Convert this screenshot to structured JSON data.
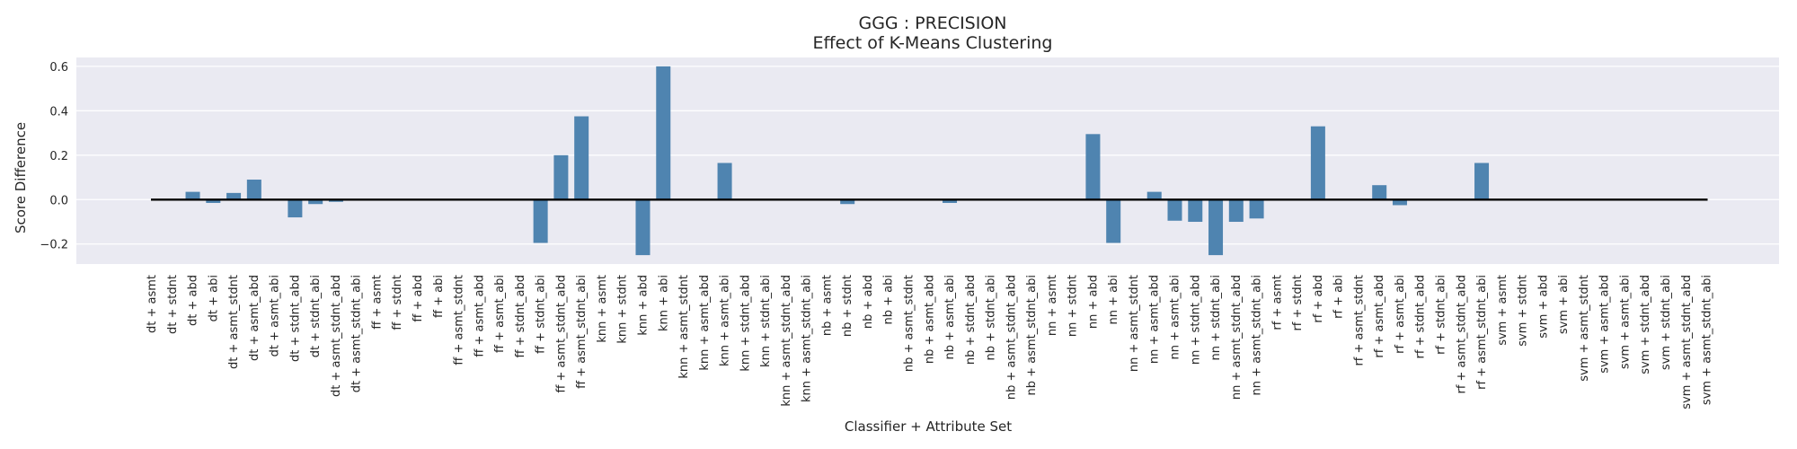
{
  "chart_data": {
    "type": "bar",
    "title": "GGG : PRECISION",
    "subtitle": "Effect of K-Means Clustering",
    "xlabel": "Classifier + Attribute Set",
    "ylabel": "Score Difference",
    "ylim": [
      -0.29,
      0.64
    ],
    "yticks": [
      -0.2,
      0.0,
      0.2,
      0.4,
      0.6
    ],
    "ytick_labels": [
      "−0.2",
      "0.0",
      "0.2",
      "0.4",
      "0.6"
    ],
    "grid": true,
    "bar_color": "#4f84b0",
    "background_color": "#eaeaf2",
    "zero_line_color": "#000000",
    "categories": [
      "dt + asmt",
      "dt + stdnt",
      "dt + abd",
      "dt + abi",
      "dt + asmt_stdnt",
      "dt + asmt_abd",
      "dt + asmt_abi",
      "dt + stdnt_abd",
      "dt + stdnt_abi",
      "dt + asmt_stdnt_abd",
      "dt + asmt_stdnt_abi",
      "ff + asmt",
      "ff + stdnt",
      "ff + abd",
      "ff + abi",
      "ff + asmt_stdnt",
      "ff + asmt_abd",
      "ff + asmt_abi",
      "ff + stdnt_abd",
      "ff + stdnt_abi",
      "ff + asmt_stdnt_abd",
      "ff + asmt_stdnt_abi",
      "knn + asmt",
      "knn + stdnt",
      "knn + abd",
      "knn + abi",
      "knn + asmt_stdnt",
      "knn + asmt_abd",
      "knn + asmt_abi",
      "knn + stdnt_abd",
      "knn + stdnt_abi",
      "knn + asmt_stdnt_abd",
      "knn + asmt_stdnt_abi",
      "nb + asmt",
      "nb + stdnt",
      "nb + abd",
      "nb + abi",
      "nb + asmt_stdnt",
      "nb + asmt_abd",
      "nb + asmt_abi",
      "nb + stdnt_abd",
      "nb + stdnt_abi",
      "nb + asmt_stdnt_abd",
      "nb + asmt_stdnt_abi",
      "nn + asmt",
      "nn + stdnt",
      "nn + abd",
      "nn + abi",
      "nn + asmt_stdnt",
      "nn + asmt_abd",
      "nn + asmt_abi",
      "nn + stdnt_abd",
      "nn + stdnt_abi",
      "nn + asmt_stdnt_abd",
      "nn + asmt_stdnt_abi",
      "rf + asmt",
      "rf + stdnt",
      "rf + abd",
      "rf + abi",
      "rf + asmt_stdnt",
      "rf + asmt_abd",
      "rf + asmt_abi",
      "rf + stdnt_abd",
      "rf + stdnt_abi",
      "rf + asmt_stdnt_abd",
      "rf + asmt_stdnt_abi",
      "svm + asmt",
      "svm + stdnt",
      "svm + abd",
      "svm + abi",
      "svm + asmt_stdnt",
      "svm + asmt_abd",
      "svm + asmt_abi",
      "svm + stdnt_abd",
      "svm + stdnt_abi",
      "svm + asmt_stdnt_abd",
      "svm + asmt_stdnt_abi"
    ],
    "values": [
      0,
      0,
      0.035,
      -0.015,
      0.03,
      0.09,
      0,
      -0.08,
      -0.02,
      -0.01,
      0,
      0,
      0,
      0,
      0,
      0,
      0,
      0,
      0,
      -0.195,
      0.2,
      0.375,
      0,
      0,
      -0.25,
      0.6,
      0,
      0,
      0.165,
      0,
      0,
      0,
      0,
      0,
      -0.02,
      0,
      0,
      0,
      0,
      -0.015,
      0,
      0,
      0,
      0,
      0,
      0,
      0.295,
      -0.195,
      0,
      0.035,
      -0.095,
      -0.1,
      -0.25,
      -0.1,
      -0.085,
      0,
      0,
      0.33,
      0,
      0,
      0.065,
      -0.025,
      0,
      0,
      0,
      0.165,
      0,
      0,
      0,
      0,
      0,
      0,
      0,
      0,
      0,
      0,
      0
    ]
  }
}
